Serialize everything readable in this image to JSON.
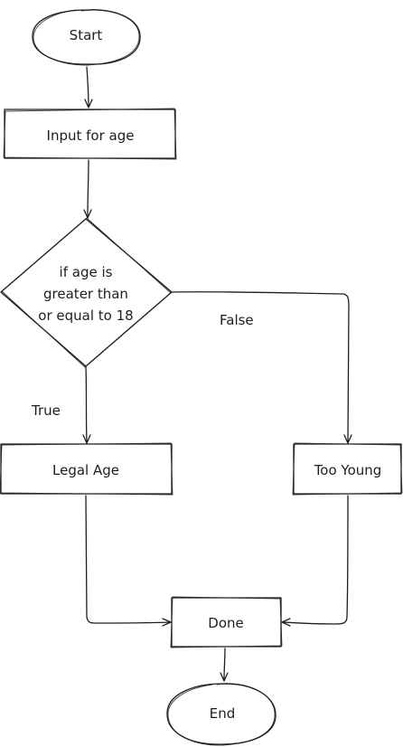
{
  "nodes": {
    "start": "Start",
    "input": "Input for age",
    "decision": [
      "if age is",
      "greater than",
      "or equal to 18"
    ],
    "legal": "Legal Age",
    "young": "Too Young",
    "done": "Done",
    "end": "End"
  },
  "edges": {
    "true_label": "True",
    "false_label": "False"
  },
  "colors": {
    "stroke": "#1e1e1e",
    "background": "#ffffff"
  }
}
